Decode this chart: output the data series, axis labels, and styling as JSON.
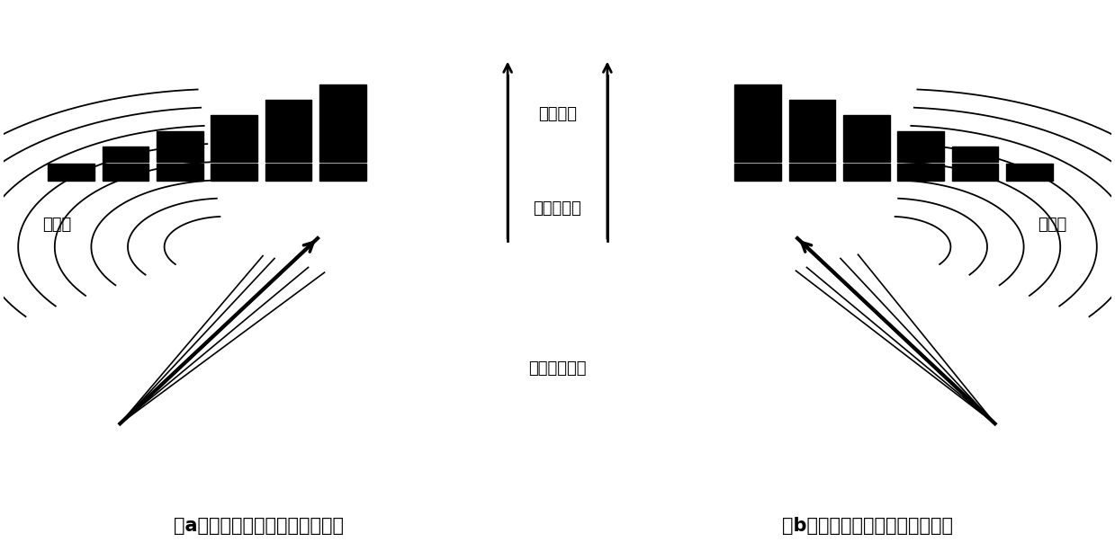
{
  "bg_color": "#ffffff",
  "text_color": "#000000",
  "left_bars_heights": [
    1,
    2,
    3,
    4,
    5,
    6
  ],
  "right_bars_heights": [
    6,
    5,
    4,
    3,
    2,
    1
  ],
  "label_a": "（a）相控阵左偏声束合成示意图",
  "label_b": "（b）相控阵右偏声束合成示意图",
  "label_pian_a": "偏转角",
  "label_pian_b": "偏转角",
  "label_delay": "延时法则",
  "label_transducer": "换能器阵元",
  "label_wavefront": "等相位波阵面",
  "font_size_caption": 15,
  "font_size_label": 13,
  "font_size_small": 12
}
